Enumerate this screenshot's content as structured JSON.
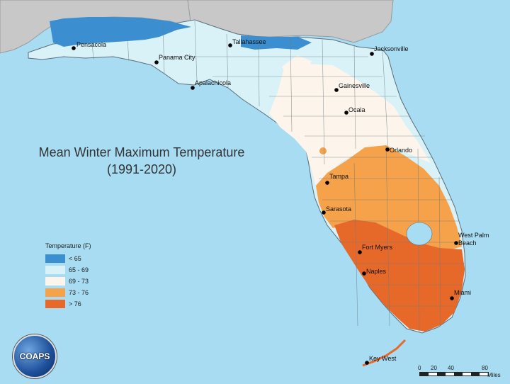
{
  "title": {
    "line1": "Mean Winter Maximum Temperature",
    "line2": "(1991-2020)"
  },
  "legend": {
    "title": "Temperature (F)",
    "items": [
      {
        "label": "< 65",
        "color": "#3b8fd0"
      },
      {
        "label": "65 - 69",
        "color": "#d8f2f7"
      },
      {
        "label": "69 - 73",
        "color": "#fdf5ec"
      },
      {
        "label": "73 - 76",
        "color": "#f5a24a"
      },
      {
        "label": "> 76",
        "color": "#e6692a"
      }
    ]
  },
  "cities": [
    {
      "name": "Pensacola"
    },
    {
      "name": "Tallahassee"
    },
    {
      "name": "Jacksonville"
    },
    {
      "name": "Panama City"
    },
    {
      "name": "Apalachicola"
    },
    {
      "name": "Gainesville"
    },
    {
      "name": "Ocala"
    },
    {
      "name": "Orlando"
    },
    {
      "name": "Tampa"
    },
    {
      "name": "Sarasota"
    },
    {
      "name": "West Palm"
    },
    {
      "name": "Beach"
    },
    {
      "name": "Fort Myers"
    },
    {
      "name": "Naples"
    },
    {
      "name": "Miami"
    },
    {
      "name": "Key West"
    }
  ],
  "logo": {
    "text": "COAPS"
  },
  "scale": {
    "ticks": [
      "0",
      "20",
      "40",
      "80"
    ],
    "unit": "Miles"
  }
}
